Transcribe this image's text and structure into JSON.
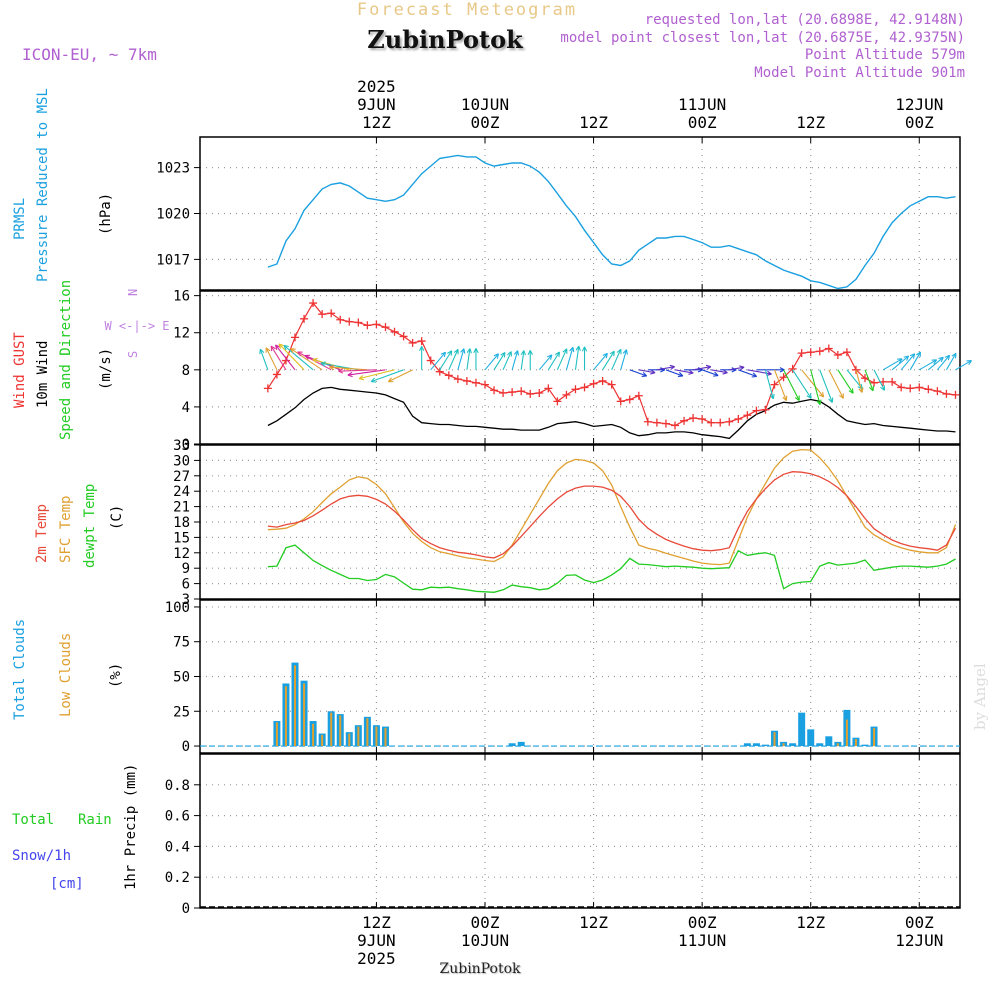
{
  "header": {
    "subtitle": "Forecast Meteogram",
    "station": "ZubinPotok",
    "model": "ICON-EU, ~ 7km",
    "requested": "requested lon,lat (20.6898E, 42.9148N)",
    "closest": "model point closest lon,lat (20.6875E, 42.9375N)",
    "alt": "Point Altitude 579m",
    "model_alt": "Model Point Altitude 901m",
    "watermark": "by Angel",
    "bottom_station": "ZubinPotok"
  },
  "time_axis": {
    "top": [
      {
        "h": 12,
        "lines": [
          "2025",
          "9JUN",
          "12Z"
        ]
      },
      {
        "h": 24,
        "lines": [
          "10JUN",
          "00Z"
        ]
      },
      {
        "h": 36,
        "lines": [
          "12Z"
        ]
      },
      {
        "h": 48,
        "lines": [
          "11JUN",
          "00Z"
        ]
      },
      {
        "h": 60,
        "lines": [
          "12Z"
        ]
      },
      {
        "h": 72,
        "lines": [
          "12JUN",
          "00Z"
        ]
      }
    ],
    "bottom": [
      {
        "h": 12,
        "lines": [
          "12Z",
          "9JUN",
          "2025"
        ]
      },
      {
        "h": 24,
        "lines": [
          "00Z",
          "10JUN"
        ]
      },
      {
        "h": 36,
        "lines": [
          "12Z"
        ]
      },
      {
        "h": 48,
        "lines": [
          "00Z",
          "11JUN"
        ]
      },
      {
        "h": 60,
        "lines": [
          "12Z"
        ]
      },
      {
        "h": 72,
        "lines": [
          "00Z",
          "12JUN"
        ]
      }
    ],
    "grid_hours": [
      12,
      24,
      36,
      48,
      60,
      72
    ]
  },
  "colors": {
    "pressure": "#1aa0e0",
    "gust": "#ee3333",
    "wind": "#000000",
    "t2m": "#e84a3a",
    "tsfc": "#e0a030",
    "dewpt": "#22cc22",
    "total_cloud": "#1aa0e0",
    "low_cloud": "#e0a030",
    "rain": "#22cc22",
    "snow": "#4444ee",
    "purple": "#b060d0",
    "title_gold": "#e8c888",
    "compass": "#c080e0"
  },
  "labels": {
    "pressure": [
      "PRMSL",
      "Pressure Reduced to MSL",
      "(hPa)"
    ],
    "wind": [
      "Wind GUST",
      "10m Wind",
      "Speed and Direction",
      "(m/s)"
    ],
    "compass": [
      "N",
      "W <-|-> E",
      "S"
    ],
    "temp": [
      "2m Temp",
      "SFC Temp",
      "dewpt Temp",
      "(C)"
    ],
    "cloud": [
      "Total Clouds",
      "Low Clouds",
      "(%)"
    ],
    "precip": [
      "Total",
      "Rain",
      "Snow/1h",
      "[cm]",
      "1hr Precip (mm)"
    ]
  },
  "chart_data": [
    {
      "type": "line",
      "name": "pressure",
      "x": [
        0,
        1,
        2,
        3,
        4,
        5,
        6,
        7,
        8,
        9,
        10,
        11,
        12,
        13,
        14,
        15,
        16,
        17,
        18,
        19,
        20,
        21,
        22,
        23,
        24,
        25,
        26,
        27,
        28,
        29,
        30,
        31,
        32,
        33,
        34,
        35,
        36,
        37,
        38,
        39,
        40,
        41,
        42,
        43,
        44,
        45,
        46,
        47,
        48,
        49,
        50,
        51,
        52,
        53,
        54,
        55,
        56,
        57,
        58,
        59,
        60,
        61,
        62,
        63,
        64,
        65,
        66,
        67,
        68,
        69,
        70,
        71,
        72,
        73,
        74,
        75,
        76
      ],
      "series": [
        {
          "values": [
            1016.5,
            1016.7,
            1018.2,
            1019.0,
            1020.2,
            1020.9,
            1021.6,
            1021.9,
            1022.0,
            1021.8,
            1021.4,
            1021.0,
            1020.9,
            1020.8,
            1020.9,
            1021.2,
            1021.9,
            1022.6,
            1023.1,
            1023.6,
            1023.7,
            1023.8,
            1023.7,
            1023.7,
            1023.3,
            1023.1,
            1023.2,
            1023.3,
            1023.3,
            1023.1,
            1022.7,
            1022.1,
            1021.3,
            1020.5,
            1019.8,
            1018.9,
            1018.1,
            1017.3,
            1016.7,
            1016.6,
            1016.9,
            1017.6,
            1018.0,
            1018.4,
            1018.4,
            1018.5,
            1018.5,
            1018.3,
            1018.1,
            1017.8,
            1017.8,
            1017.9,
            1017.7,
            1017.5,
            1017.3,
            1016.9,
            1016.6,
            1016.3,
            1016.1,
            1015.9,
            1015.6,
            1015.5,
            1015.3,
            1015.1,
            1015.2,
            1015.7,
            1016.6,
            1017.4,
            1018.5,
            1019.4,
            1020.0,
            1020.5,
            1020.8,
            1021.1,
            1021.1,
            1021.0,
            1021.1
          ]
        }
      ],
      "ylim": [
        1015,
        1025
      ],
      "yticks": [
        1017,
        1020,
        1023
      ]
    },
    {
      "type": "line",
      "name": "wind",
      "x": [
        0,
        1,
        2,
        3,
        4,
        5,
        6,
        7,
        8,
        9,
        10,
        11,
        12,
        13,
        14,
        15,
        16,
        17,
        18,
        19,
        20,
        21,
        22,
        23,
        24,
        25,
        26,
        27,
        28,
        29,
        30,
        31,
        32,
        33,
        34,
        35,
        36,
        37,
        38,
        39,
        40,
        41,
        42,
        43,
        44,
        45,
        46,
        47,
        48,
        49,
        50,
        51,
        52,
        53,
        54,
        55,
        56,
        57,
        58,
        59,
        60,
        61,
        62,
        63,
        64,
        65,
        66,
        67,
        68,
        69,
        70,
        71,
        72,
        73,
        74,
        75,
        76
      ],
      "series": [
        {
          "key": "gust",
          "values": [
            6.0,
            7.5,
            9.0,
            11.5,
            13.5,
            15.2,
            14.0,
            14.1,
            13.4,
            13.2,
            13.1,
            12.8,
            12.9,
            12.6,
            12.1,
            11.6,
            10.9,
            11.1,
            9.0,
            7.8,
            7.4,
            7.0,
            6.8,
            6.6,
            6.4,
            5.8,
            5.5,
            5.6,
            5.7,
            5.4,
            5.5,
            6.0,
            4.6,
            5.3,
            5.9,
            6.1,
            6.5,
            6.8,
            6.4,
            4.6,
            4.8,
            5.2,
            2.4,
            2.3,
            2.2,
            2.0,
            2.5,
            2.8,
            2.7,
            2.3,
            2.3,
            2.4,
            2.7,
            3.1,
            3.6,
            3.7,
            6.4,
            7.2,
            8.1,
            9.8,
            9.9,
            10.0,
            10.3,
            9.6,
            9.9,
            8.0,
            7.1,
            6.6,
            6.7,
            6.7,
            6.1,
            6.0,
            6.1,
            5.9,
            5.7,
            5.4,
            5.3
          ]
        },
        {
          "key": "wind",
          "values": [
            2.0,
            2.5,
            3.2,
            3.9,
            4.8,
            5.5,
            6.0,
            6.1,
            5.9,
            5.8,
            5.7,
            5.6,
            5.5,
            5.3,
            4.9,
            4.5,
            3.0,
            2.3,
            2.2,
            2.1,
            2.1,
            2.0,
            1.9,
            1.9,
            1.8,
            1.7,
            1.6,
            1.6,
            1.5,
            1.5,
            1.5,
            1.8,
            2.2,
            2.3,
            2.4,
            2.2,
            1.9,
            2.0,
            2.1,
            1.8,
            1.2,
            0.9,
            1.0,
            1.2,
            1.2,
            1.3,
            1.3,
            1.2,
            1.0,
            0.9,
            0.8,
            0.6,
            1.5,
            2.5,
            3.2,
            3.6,
            4.2,
            4.5,
            4.4,
            4.6,
            4.8,
            4.6,
            4.0,
            3.2,
            2.5,
            2.3,
            2.1,
            2.2,
            2.0,
            1.9,
            1.8,
            1.7,
            1.6,
            1.5,
            1.4,
            1.4,
            1.3
          ]
        }
      ],
      "ylim": [
        0,
        16.5
      ],
      "yticks": [
        0,
        4,
        8,
        12,
        16
      ]
    },
    {
      "type": "line",
      "name": "temperature",
      "x": [
        0,
        1,
        2,
        3,
        4,
        5,
        6,
        7,
        8,
        9,
        10,
        11,
        12,
        13,
        14,
        15,
        16,
        17,
        18,
        19,
        20,
        21,
        22,
        23,
        24,
        25,
        26,
        27,
        28,
        29,
        30,
        31,
        32,
        33,
        34,
        35,
        36,
        37,
        38,
        39,
        40,
        41,
        42,
        43,
        44,
        45,
        46,
        47,
        48,
        49,
        50,
        51,
        52,
        53,
        54,
        55,
        56,
        57,
        58,
        59,
        60,
        61,
        62,
        63,
        64,
        65,
        66,
        67,
        68,
        69,
        70,
        71,
        72,
        73,
        74,
        75,
        76
      ],
      "series": [
        {
          "key": "t2m",
          "values": [
            17.2,
            17.0,
            17.5,
            17.8,
            18.3,
            19.2,
            20.3,
            21.5,
            22.5,
            23.0,
            23.2,
            23.0,
            22.4,
            21.5,
            20.1,
            18.4,
            16.5,
            14.8,
            13.8,
            13.0,
            12.5,
            12.1,
            11.9,
            11.6,
            11.2,
            11.0,
            11.8,
            13.3,
            15.2,
            17.1,
            19.1,
            20.9,
            22.5,
            23.8,
            24.6,
            25.0,
            25.0,
            24.8,
            24.2,
            23.0,
            21.0,
            18.5,
            16.8,
            15.6,
            14.6,
            13.9,
            13.3,
            12.8,
            12.5,
            12.4,
            12.6,
            13.0,
            16.8,
            20.1,
            22.5,
            24.5,
            26.2,
            27.3,
            27.8,
            27.7,
            27.4,
            26.8,
            25.9,
            24.7,
            23.1,
            21.0,
            18.7,
            16.7,
            15.5,
            14.5,
            13.8,
            13.3,
            13.0,
            12.8,
            12.5,
            13.5,
            16.8
          ]
        },
        {
          "key": "tsfc",
          "values": [
            16.5,
            16.6,
            16.8,
            17.5,
            18.6,
            20.0,
            21.8,
            23.5,
            24.8,
            26.2,
            26.8,
            26.5,
            25.3,
            23.5,
            20.8,
            18.0,
            15.8,
            14.2,
            13.0,
            12.2,
            11.8,
            11.4,
            11.0,
            10.8,
            10.5,
            10.3,
            11.2,
            13.5,
            16.5,
            19.5,
            22.5,
            25.5,
            28.0,
            29.5,
            30.2,
            30.0,
            29.5,
            28.0,
            25.2,
            21.0,
            17.0,
            13.5,
            12.9,
            12.5,
            11.9,
            11.4,
            10.9,
            10.4,
            10.0,
            9.8,
            9.7,
            10.0,
            14.5,
            19.0,
            22.5,
            25.5,
            28.5,
            30.5,
            31.8,
            32.1,
            32.0,
            30.5,
            28.5,
            26.0,
            23.0,
            20.0,
            17.0,
            15.5,
            14.5,
            13.6,
            13.0,
            12.5,
            12.2,
            12.0,
            12.0,
            13.0,
            17.5
          ]
        },
        {
          "key": "dewpt",
          "values": [
            9.3,
            9.4,
            13.0,
            13.5,
            12.0,
            10.5,
            9.5,
            8.6,
            7.8,
            7.0,
            7.0,
            6.6,
            6.8,
            7.8,
            7.3,
            6.1,
            4.9,
            4.8,
            5.3,
            5.2,
            5.3,
            5.0,
            4.8,
            4.5,
            4.4,
            4.3,
            4.8,
            5.7,
            5.4,
            5.2,
            4.8,
            5.0,
            6.1,
            7.6,
            7.7,
            6.7,
            6.2,
            6.7,
            7.7,
            8.9,
            10.9,
            9.8,
            9.7,
            9.5,
            9.3,
            9.4,
            9.3,
            9.2,
            9.0,
            8.9,
            9.0,
            9.1,
            12.4,
            11.5,
            11.8,
            12.0,
            11.5,
            5.0,
            6.0,
            6.3,
            6.4,
            9.4,
            10.1,
            9.6,
            9.8,
            10.0,
            10.6,
            8.6,
            8.9,
            9.2,
            9.4,
            9.4,
            9.3,
            9.2,
            9.4,
            9.8,
            10.8
          ]
        }
      ],
      "ylim": [
        3,
        33
      ],
      "yticks": [
        3,
        6,
        9,
        12,
        15,
        18,
        21,
        24,
        27,
        30,
        33
      ]
    },
    {
      "type": "bar",
      "name": "clouds",
      "x": [
        0,
        1,
        2,
        3,
        4,
        5,
        6,
        7,
        8,
        9,
        10,
        11,
        12,
        13,
        14,
        15,
        16,
        17,
        18,
        19,
        20,
        21,
        22,
        23,
        24,
        25,
        26,
        27,
        28,
        29,
        30,
        31,
        32,
        33,
        34,
        35,
        36,
        37,
        38,
        39,
        40,
        41,
        42,
        43,
        44,
        45,
        46,
        47,
        48,
        49,
        50,
        51,
        52,
        53,
        54,
        55,
        56,
        57,
        58,
        59,
        60,
        61,
        62,
        63,
        64,
        65,
        66,
        67,
        68,
        69,
        70,
        71,
        72,
        73,
        74,
        75,
        76
      ],
      "series": [
        {
          "key": "total",
          "values": [
            0,
            18,
            45,
            60,
            47,
            18,
            9,
            25,
            23,
            10,
            15,
            21,
            15,
            14,
            0,
            0,
            0,
            0,
            0,
            0,
            0,
            0,
            0,
            0,
            0,
            0,
            0,
            2,
            3,
            0,
            0,
            0,
            0,
            0,
            0,
            0,
            0,
            0,
            0,
            0,
            0,
            0,
            0,
            0,
            0,
            0,
            0,
            0,
            0,
            0,
            0,
            0,
            0,
            2,
            2,
            1,
            11,
            3,
            2,
            24,
            12,
            2,
            7,
            3,
            26,
            6,
            1,
            14,
            0,
            0,
            0,
            0,
            0,
            0,
            0,
            0,
            0
          ]
        },
        {
          "key": "low",
          "values": [
            0,
            17,
            43,
            58,
            45,
            16,
            8,
            24,
            22,
            9,
            14,
            20,
            14,
            13,
            0,
            0,
            0,
            0,
            0,
            0,
            0,
            0,
            0,
            0,
            0,
            0,
            0,
            0,
            0,
            0,
            0,
            0,
            0,
            0,
            0,
            0,
            0,
            0,
            0,
            0,
            0,
            0,
            0,
            0,
            0,
            0,
            0,
            0,
            0,
            0,
            0,
            0,
            0,
            0,
            0,
            0,
            10,
            2,
            0,
            0,
            0,
            0,
            0,
            2,
            19,
            5,
            0,
            13,
            0,
            0,
            0,
            0,
            0,
            0,
            0,
            0,
            0
          ]
        }
      ],
      "ylim": [
        -5,
        105
      ],
      "yticks": [
        0,
        25,
        50,
        75,
        100
      ]
    },
    {
      "type": "bar",
      "name": "precipitation",
      "series": [
        {
          "values": []
        }
      ],
      "ylim": [
        0,
        1.0
      ],
      "yticks": [
        0,
        0.2,
        0.4,
        0.6,
        0.8
      ]
    }
  ]
}
